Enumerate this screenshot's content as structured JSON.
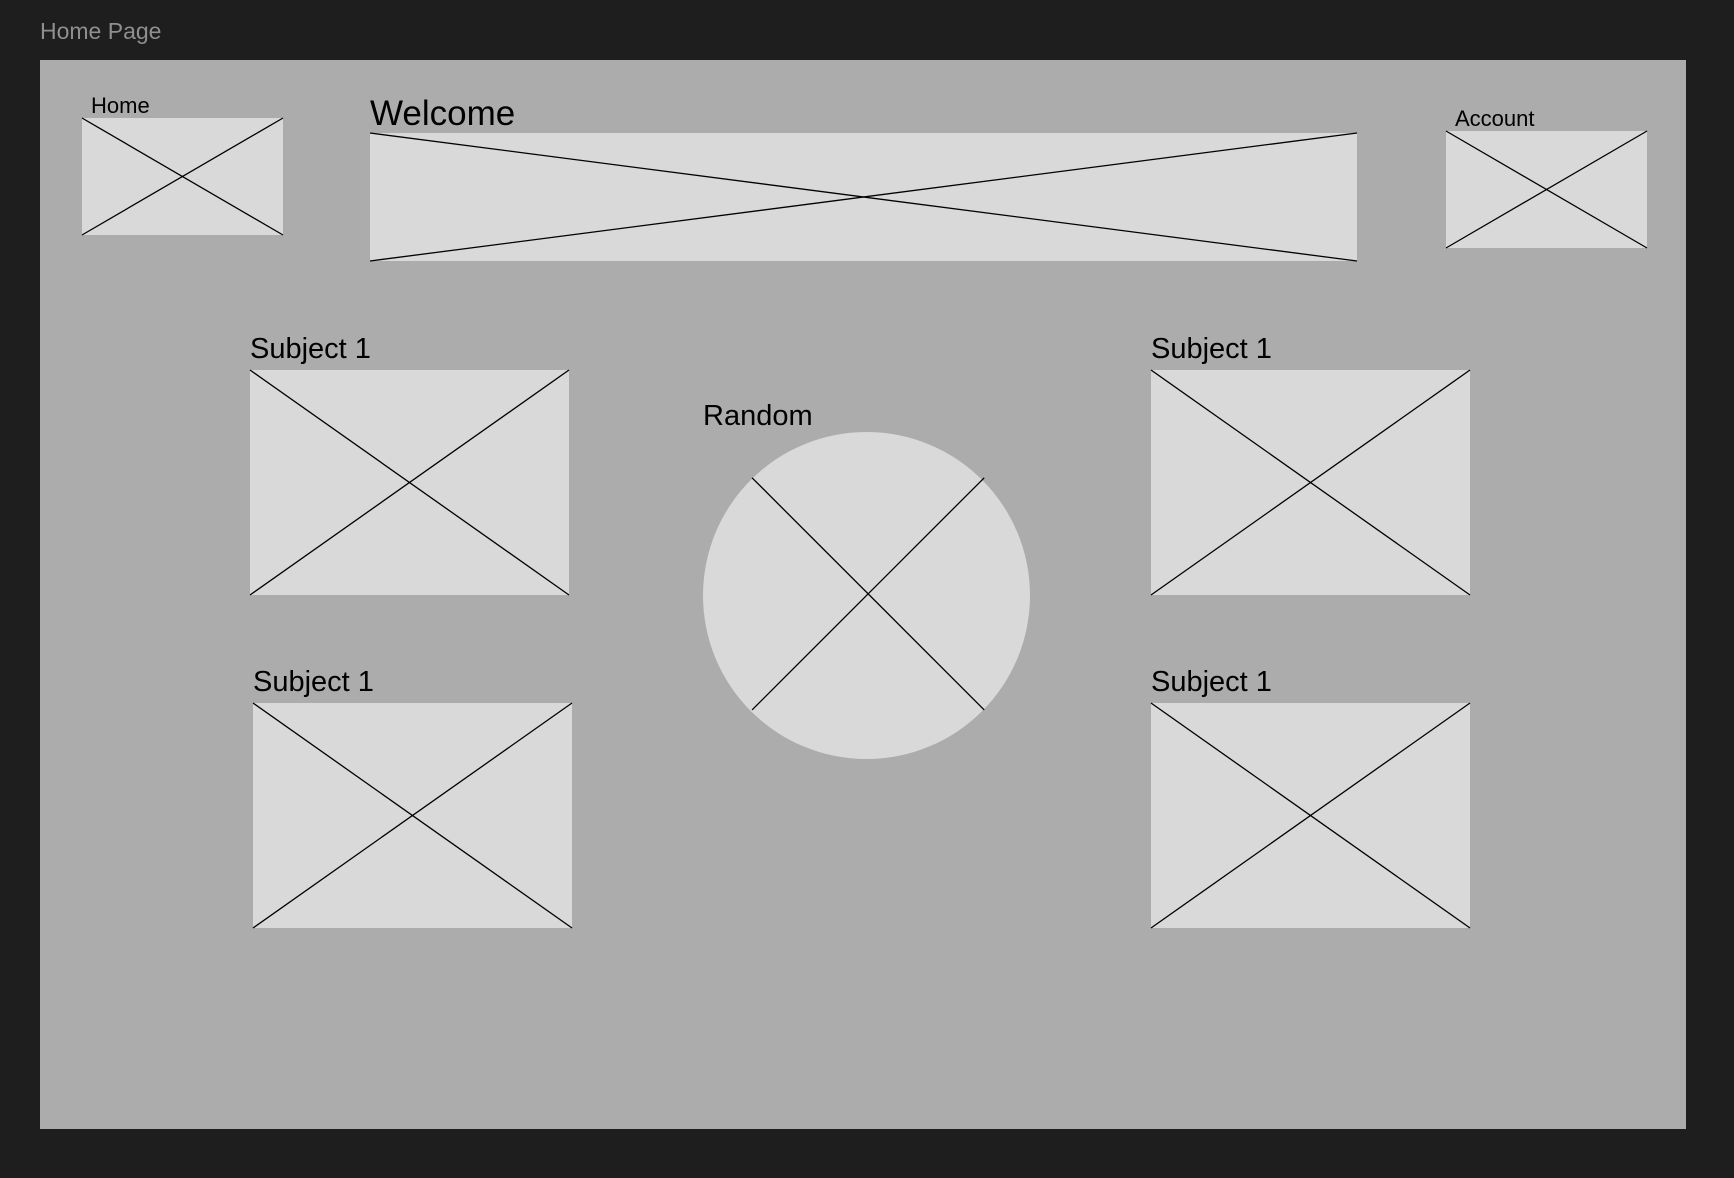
{
  "frame": {
    "title": "Home Page",
    "background": "#acacac"
  },
  "header": {
    "home_label": "Home",
    "welcome_label": "Welcome",
    "account_label": "Account"
  },
  "subjects": {
    "top_left_label": "Subject 1",
    "bottom_left_label": "Subject 1",
    "top_right_label": "Subject 1",
    "bottom_right_label": "Subject 1"
  },
  "random": {
    "label": "Random"
  },
  "colors": {
    "canvas": "#1e1e1e",
    "placeholder": "#d9d9d9",
    "title_text": "#8f8f8f"
  }
}
